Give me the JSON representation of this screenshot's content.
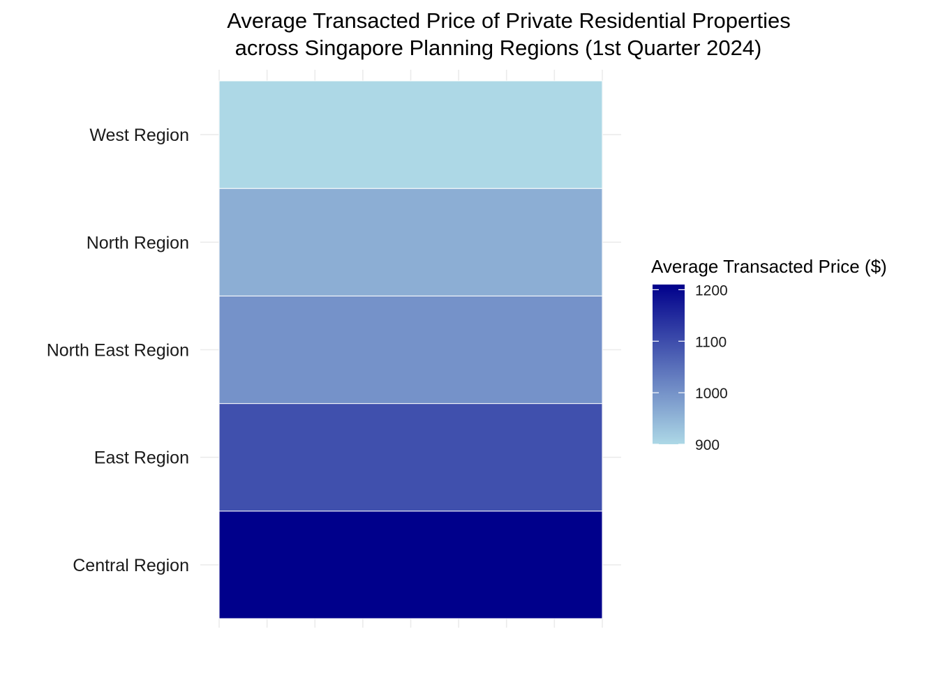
{
  "chart_data": {
    "type": "heatmap",
    "title_lines": [
      "Average Transacted Price of Private Residential Properties",
      "across Singapore Planning Regions (1st Quarter 2024)"
    ],
    "xlabel": "",
    "ylabel": "",
    "categories": [
      "Central Region",
      "East Region",
      "North East Region",
      "North Region",
      "West Region"
    ],
    "values": [
      1210,
      1095,
      1000,
      960,
      900
    ],
    "grid": true,
    "legend": {
      "title": "Average Transacted Price ($)",
      "placement": "right",
      "range": [
        900,
        1210
      ],
      "ticks": [
        900,
        1000,
        1100,
        1200
      ],
      "tick_labels": [
        "900",
        "1000",
        "1100",
        "1200"
      ],
      "low_color": "#add8e6",
      "high_color": "#00008b"
    }
  }
}
